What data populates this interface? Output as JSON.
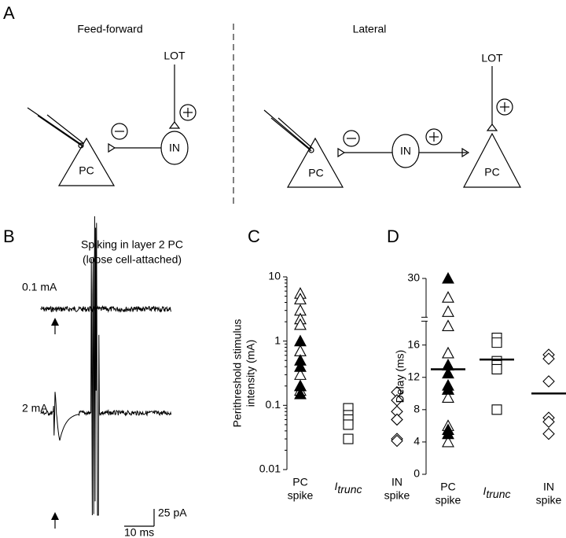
{
  "panels": {
    "a": {
      "label": "A",
      "feedforward": {
        "title": "Feed-forward",
        "lot": "LOT",
        "pc": "PC",
        "in": "IN"
      },
      "lateral": {
        "title": "Lateral",
        "lot": "LOT",
        "pc_left": "PC",
        "in": "IN",
        "pc_right": "PC"
      }
    },
    "b": {
      "label": "B",
      "title": [
        "Spiking in layer 2 PC",
        "(loose cell-attached)"
      ],
      "low": "0.1 mA",
      "high": "2 mA",
      "scale_y": "25 pA",
      "scale_x": "10 ms"
    }
  },
  "chart_data": [
    {
      "panel_label": "C",
      "type": "scatter",
      "ylabel": [
        "Perithreshold stimulus",
        "intensity (mA)"
      ],
      "categories": [
        [
          "PC",
          "spike"
        ],
        [
          "I",
          "trunc"
        ],
        [
          "IN",
          "spike"
        ]
      ],
      "log_y": true,
      "ylim": [
        0.01,
        10
      ],
      "yticks": [
        0.01,
        0.1,
        1,
        10
      ],
      "series": [
        {
          "marker": "triangle",
          "filled": false,
          "color": "#000000",
          "x": [
            0,
            0,
            0,
            0,
            0,
            0,
            0,
            0,
            0
          ],
          "values": [
            5.5,
            4.5,
            3,
            2.2,
            1.8,
            0.7,
            0.3,
            0.2,
            0.17
          ]
        },
        {
          "marker": "triangle",
          "filled": true,
          "color": "#000000",
          "x": [
            0,
            0,
            0,
            0,
            0
          ],
          "values": [
            1,
            0.5,
            0.4,
            0.2,
            0.15
          ]
        },
        {
          "marker": "square",
          "filled": false,
          "color": "#000000",
          "x": [
            1,
            1,
            1,
            1,
            1
          ],
          "values": [
            0.09,
            0.07,
            0.06,
            0.05,
            0.03
          ]
        },
        {
          "marker": "diamond",
          "filled": false,
          "color": "#000000",
          "x": [
            2,
            2,
            2,
            2,
            2,
            2
          ],
          "values": [
            0.16,
            0.12,
            0.08,
            0.06,
            0.03,
            0.028
          ]
        }
      ]
    },
    {
      "panel_label": "D",
      "type": "scatter",
      "ylabel": [
        "Delay (ms)"
      ],
      "categories": [
        [
          "PC",
          "spike"
        ],
        [
          "I",
          "trunc"
        ],
        [
          "IN",
          "spike"
        ]
      ],
      "ylim": [
        0,
        30
      ],
      "yticks": [
        0,
        4,
        8,
        12,
        16,
        30
      ],
      "y_break": 16,
      "means": [
        13,
        14.2,
        10
      ],
      "series": [
        {
          "marker": "triangle",
          "filled": false,
          "color": "#000000",
          "x": [
            0,
            0,
            0,
            0,
            0,
            0,
            0,
            0,
            0
          ],
          "values": [
            26,
            23,
            20,
            15,
            13.5,
            10.5,
            9.5,
            6,
            4
          ]
        },
        {
          "marker": "triangle",
          "filled": true,
          "color": "#000000",
          "x": [
            0,
            0,
            0,
            0,
            0,
            0,
            0
          ],
          "values": [
            30,
            13.5,
            12.5,
            11,
            10.5,
            5.5,
            5
          ]
        },
        {
          "marker": "square",
          "filled": false,
          "color": "#000000",
          "x": [
            1,
            1,
            1,
            1,
            1,
            1
          ],
          "values": [
            17.5,
            16.5,
            14,
            13.5,
            13,
            8
          ]
        },
        {
          "marker": "diamond",
          "filled": false,
          "color": "#000000",
          "x": [
            2,
            2,
            2,
            2,
            2,
            2
          ],
          "values": [
            14.8,
            14.3,
            11.5,
            7,
            6.5,
            5
          ]
        }
      ]
    }
  ]
}
